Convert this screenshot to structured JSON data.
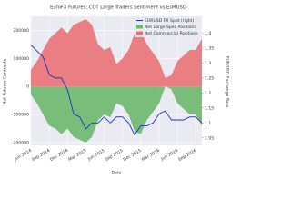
{
  "chart_data": {
    "type": "area-line",
    "title": "EuroFX Futures: COT Large Traders Sentiment vs EURUSD",
    "x_label": "Date",
    "y_label": "Net Futures Contracts",
    "y2_label": "EUR/USD Exchange Rate",
    "x": [
      "Jun 2014",
      null,
      null,
      "Sep 2014",
      null,
      null,
      "Dec 2014",
      null,
      null,
      "Mar 2015",
      null,
      null,
      "Jun 2015",
      null,
      null,
      "Sep 2015",
      null,
      null,
      "Dec 2015",
      null,
      null,
      "Mar 2016",
      null,
      null,
      "Jun 2016",
      null,
      null,
      "Sep 2016",
      null
    ],
    "series": [
      {
        "name": "EURUSD FX Spot (right)",
        "color": "#2432c8",
        "axis": "y2",
        "kind": "line",
        "values": [
          1.36,
          1.34,
          1.32,
          1.26,
          1.25,
          1.25,
          1.21,
          1.13,
          1.12,
          1.08,
          1.1,
          1.1,
          1.12,
          1.1,
          1.12,
          1.12,
          1.1,
          1.06,
          1.09,
          1.09,
          1.1,
          1.13,
          1.14,
          1.11,
          1.11,
          1.11,
          1.12,
          1.12,
          1.1
        ]
      },
      {
        "name": "Net Large Spec Positions",
        "color": "#6bb86b",
        "kind": "area",
        "values": [
          -30000,
          -60000,
          -100000,
          -140000,
          -150000,
          -170000,
          -150000,
          -180000,
          -190000,
          -200000,
          -180000,
          -120000,
          -100000,
          -110000,
          -60000,
          -70000,
          -100000,
          -160000,
          -170000,
          -120000,
          -90000,
          -60000,
          0,
          -10000,
          -60000,
          -80000,
          -100000,
          -100000,
          -140000
        ]
      },
      {
        "name": "Net Commercial Positions",
        "color": "#ea7377",
        "kind": "area",
        "values": [
          60000,
          90000,
          130000,
          170000,
          190000,
          210000,
          190000,
          220000,
          230000,
          240000,
          220000,
          150000,
          130000,
          140000,
          80000,
          100000,
          130000,
          190000,
          200000,
          150000,
          120000,
          90000,
          30000,
          40000,
          90000,
          110000,
          130000,
          130000,
          170000
        ]
      }
    ],
    "ylim": [
      -210000,
      250000
    ],
    "yticks": [
      -200000,
      -100000,
      0,
      100000,
      200000
    ],
    "y2lim": [
      1.025,
      1.456
    ],
    "y2ticks": [
      1.05,
      1.1,
      1.15,
      1.2,
      1.25,
      1.3,
      1.35,
      1.4
    ],
    "grid": true,
    "legend": "upper right"
  }
}
